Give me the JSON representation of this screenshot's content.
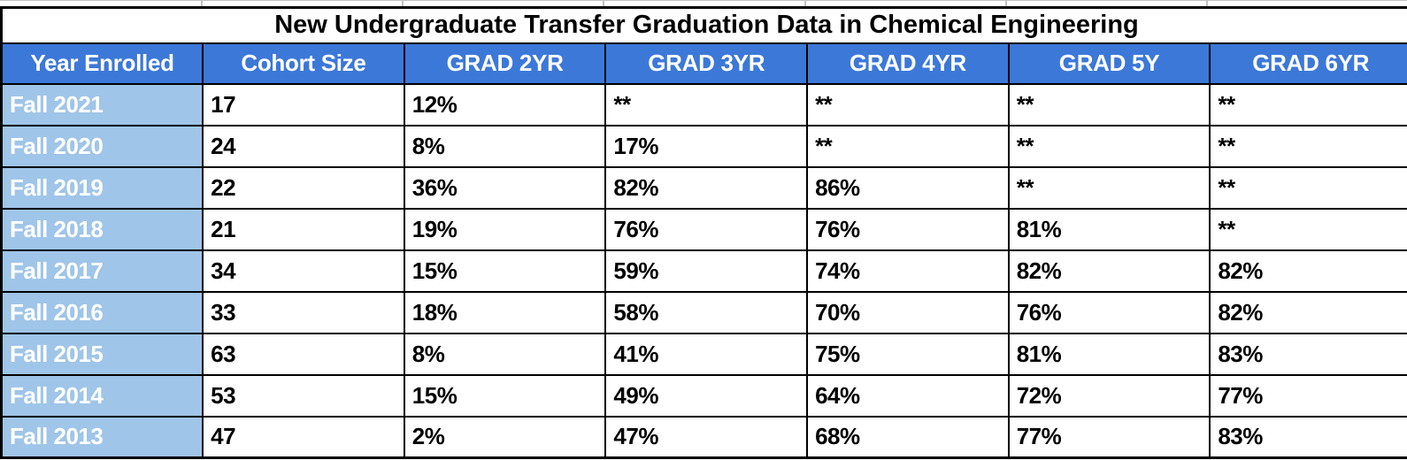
{
  "sheet": {
    "title": "New Undergraduate Transfer Graduation Data in Chemical Engineering",
    "columns": [
      "Year Enrolled",
      "Cohort Size",
      "GRAD 2YR",
      "GRAD 3YR",
      "GRAD 4YR",
      "GRAD 5Y",
      "GRAD 6YR"
    ],
    "rows": [
      [
        "Fall 2021",
        "17",
        "12%",
        "**",
        "**",
        "**",
        "**"
      ],
      [
        "Fall 2020",
        "24",
        "8%",
        "17%",
        "**",
        "**",
        "**"
      ],
      [
        "Fall 2019",
        "22",
        "36%",
        "82%",
        "86%",
        "**",
        "**"
      ],
      [
        "Fall 2018",
        "21",
        "19%",
        "76%",
        "76%",
        "81%",
        "**"
      ],
      [
        "Fall 2017",
        "34",
        "15%",
        "59%",
        "74%",
        "82%",
        "82%"
      ],
      [
        "Fall 2016",
        "33",
        "18%",
        "58%",
        "70%",
        "76%",
        "82%"
      ],
      [
        "Fall 2015",
        "63",
        "8%",
        "41%",
        "75%",
        "81%",
        "83%"
      ],
      [
        "Fall 2014",
        "53",
        "15%",
        "49%",
        "64%",
        "72%",
        "77%"
      ],
      [
        "Fall 2013",
        "47",
        "2%",
        "47%",
        "68%",
        "77%",
        "83%"
      ]
    ],
    "suppressed_marker": "**",
    "colors": {
      "header_bg": "#3c78d8",
      "header_text": "#ffffff",
      "year_col_bg": "#9fc5e8",
      "year_col_text": "#ffffff",
      "cell_bg": "#ffffff",
      "cell_text": "#000000",
      "grid_border": "#000000",
      "outer_gridline": "#c2c2c2"
    }
  },
  "chart_data": {
    "type": "table",
    "title": "New Undergraduate Transfer Graduation Data in Chemical Engineering",
    "columns": [
      "Year Enrolled",
      "Cohort Size",
      "GRAD 2YR",
      "GRAD 3YR",
      "GRAD 4YR",
      "GRAD 5Y",
      "GRAD 6YR"
    ],
    "rows": [
      [
        "Fall 2021",
        "17",
        "12%",
        "**",
        "**",
        "**",
        "**"
      ],
      [
        "Fall 2020",
        "24",
        "8%",
        "17%",
        "**",
        "**",
        "**"
      ],
      [
        "Fall 2019",
        "22",
        "36%",
        "82%",
        "86%",
        "**",
        "**"
      ],
      [
        "Fall 2018",
        "21",
        "19%",
        "76%",
        "76%",
        "81%",
        "**"
      ],
      [
        "Fall 2017",
        "34",
        "15%",
        "59%",
        "74%",
        "82%",
        "82%"
      ],
      [
        "Fall 2016",
        "33",
        "18%",
        "58%",
        "70%",
        "76%",
        "82%"
      ],
      [
        "Fall 2015",
        "63",
        "8%",
        "41%",
        "75%",
        "81%",
        "83%"
      ],
      [
        "Fall 2014",
        "53",
        "15%",
        "49%",
        "64%",
        "72%",
        "77%"
      ],
      [
        "Fall 2013",
        "47",
        "2%",
        "47%",
        "68%",
        "77%",
        "83%"
      ]
    ]
  }
}
